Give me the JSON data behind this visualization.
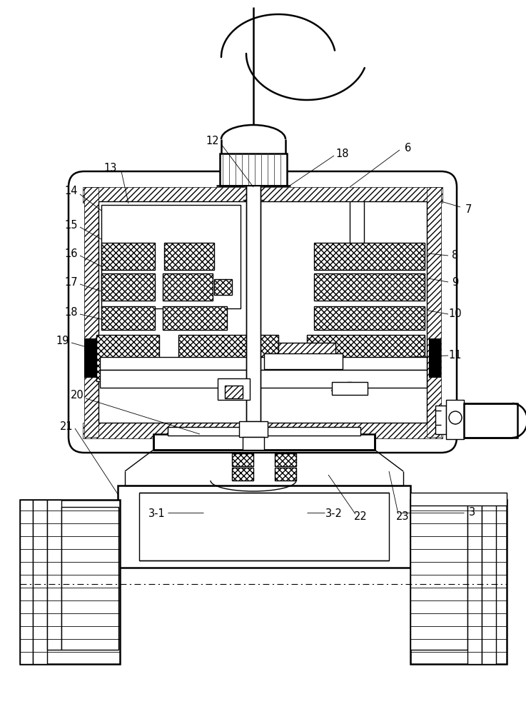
{
  "bg_color": "#ffffff",
  "line_color": "#000000",
  "lw": 1.0,
  "lw2": 1.8,
  "lw3": 0.6
}
